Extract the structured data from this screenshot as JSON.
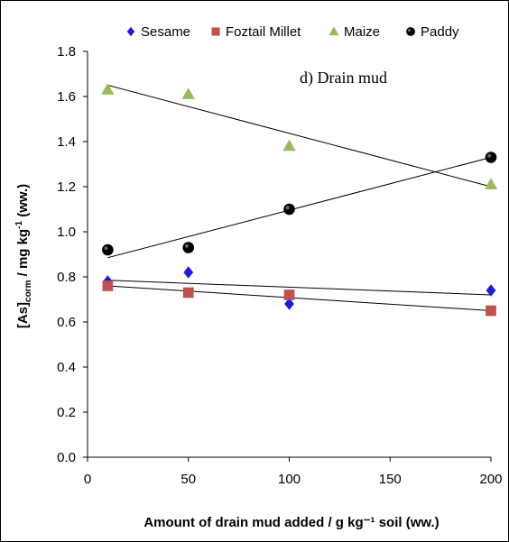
{
  "chart_data": {
    "type": "scatter",
    "title": "",
    "annotation": "d) Drain  mud",
    "xlabel": "Amount of drain mud added / g kg⁻¹ soil (ww.)",
    "ylabel": {
      "prefix": "[As]",
      "sub": "corm",
      "mid": "  /  mg kg",
      "sup": "-1",
      "suffix": " (ww.)"
    },
    "xlim": [
      0,
      200
    ],
    "ylim": [
      0,
      1.8
    ],
    "xticks": [
      "0",
      "50",
      "100",
      "150",
      "200"
    ],
    "yticks": [
      "0.0",
      "0.2",
      "0.4",
      "0.6",
      "0.8",
      "1.0",
      "1.2",
      "1.4",
      "1.6",
      "1.8"
    ],
    "grid": false,
    "legend_position": "top",
    "series": [
      {
        "name": "Sesame",
        "marker": "diamond",
        "color": "#1c1cdc",
        "x": [
          10,
          50,
          100,
          200
        ],
        "y": [
          0.78,
          0.82,
          0.68,
          0.74
        ],
        "trendline": [
          [
            10,
            0.785
          ],
          [
            200,
            0.72
          ]
        ]
      },
      {
        "name": "Foztail Millet",
        "marker": "square",
        "color": "#c0504d",
        "x": [
          10,
          50,
          100,
          200
        ],
        "y": [
          0.76,
          0.73,
          0.72,
          0.65
        ],
        "trendline": [
          [
            10,
            0.76
          ],
          [
            200,
            0.65
          ]
        ]
      },
      {
        "name": "Maize",
        "marker": "triangle",
        "color": "#9bbb59",
        "x": [
          10,
          50,
          100,
          200
        ],
        "y": [
          1.63,
          1.61,
          1.38,
          1.21
        ],
        "trendline": [
          [
            10,
            1.65
          ],
          [
            200,
            1.2
          ]
        ]
      },
      {
        "name": "Paddy",
        "marker": "circle",
        "color": "#000000",
        "x": [
          10,
          50,
          100,
          200
        ],
        "y": [
          0.92,
          0.93,
          1.1,
          1.33
        ],
        "trendline": [
          [
            10,
            0.885
          ],
          [
            200,
            1.33
          ]
        ]
      }
    ]
  }
}
